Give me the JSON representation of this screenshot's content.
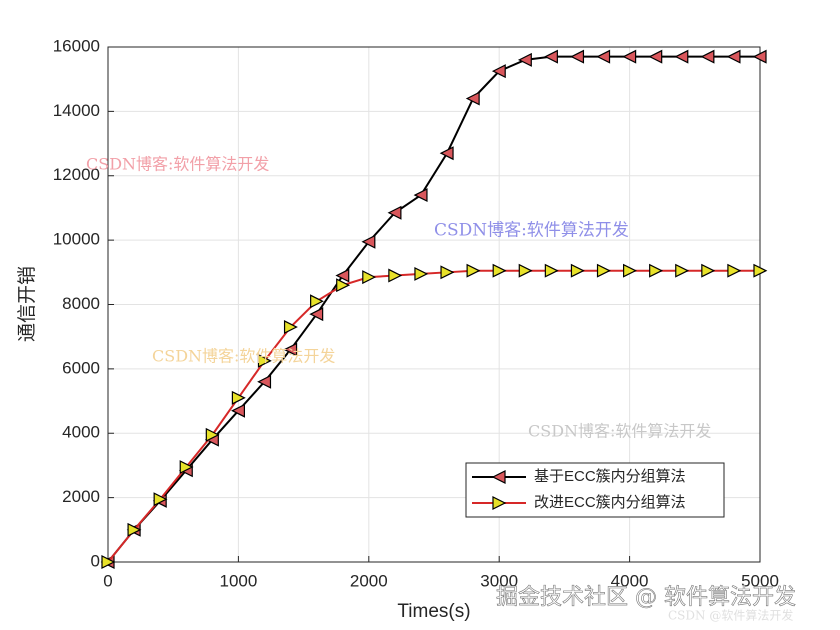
{
  "chart_data": {
    "type": "line",
    "xlabel": "Times(s)",
    "ylabel": "通信开销",
    "x": [
      0,
      200,
      400,
      600,
      800,
      1000,
      1200,
      1400,
      1600,
      1800,
      2000,
      2200,
      2400,
      2600,
      2800,
      3000,
      3200,
      3400,
      3600,
      3800,
      4000,
      4200,
      4400,
      4600,
      4800,
      5000
    ],
    "series": [
      {
        "name": "基于ECC簇内分组算法",
        "color": "#000000",
        "marker": "triangle-left",
        "marker_color": "#d9575c",
        "values": [
          0,
          1000,
          1900,
          2850,
          3800,
          4700,
          5600,
          6600,
          7700,
          8900,
          9950,
          10850,
          11400,
          12700,
          14400,
          15250,
          15600,
          15700,
          15700,
          15700,
          15700,
          15700,
          15700,
          15700,
          15700,
          15700
        ]
      },
      {
        "name": "改进ECC簇内分组算法",
        "color": "#d62828",
        "marker": "triangle-right",
        "marker_color": "#e8e22a",
        "values": [
          0,
          1000,
          1950,
          2950,
          3950,
          5100,
          6250,
          7300,
          8100,
          8600,
          8850,
          8900,
          8950,
          9000,
          9050,
          9050,
          9050,
          9050,
          9050,
          9050,
          9050,
          9050,
          9050,
          9050,
          9050,
          9050
        ]
      }
    ],
    "xlim": [
      0,
      5000
    ],
    "xticks": [
      0,
      1000,
      2000,
      3000,
      4000,
      5000
    ],
    "ylim": [
      0,
      16000
    ],
    "yticks": [
      0,
      2000,
      4000,
      6000,
      8000,
      10000,
      12000,
      14000,
      16000
    ],
    "grid": true,
    "legend": "lower right",
    "annotations": [
      {
        "text": "CSDN博客:软件算法开发",
        "color": "#f2a0a8"
      },
      {
        "text": "CSDN博客:软件算法开发",
        "color": "#8f8fe8"
      },
      {
        "text": "CSDN博客:软件算法开发",
        "color": "#f4d49a"
      },
      {
        "text": "CSDN博客:软件算法开发",
        "color": "#c8c8c8"
      },
      {
        "text": "掘金技术社区 @ 软件算法开发",
        "color": "#ffffff"
      },
      {
        "text": "CSDN @软件算法开发",
        "color": "#e0e0e0"
      }
    ]
  }
}
